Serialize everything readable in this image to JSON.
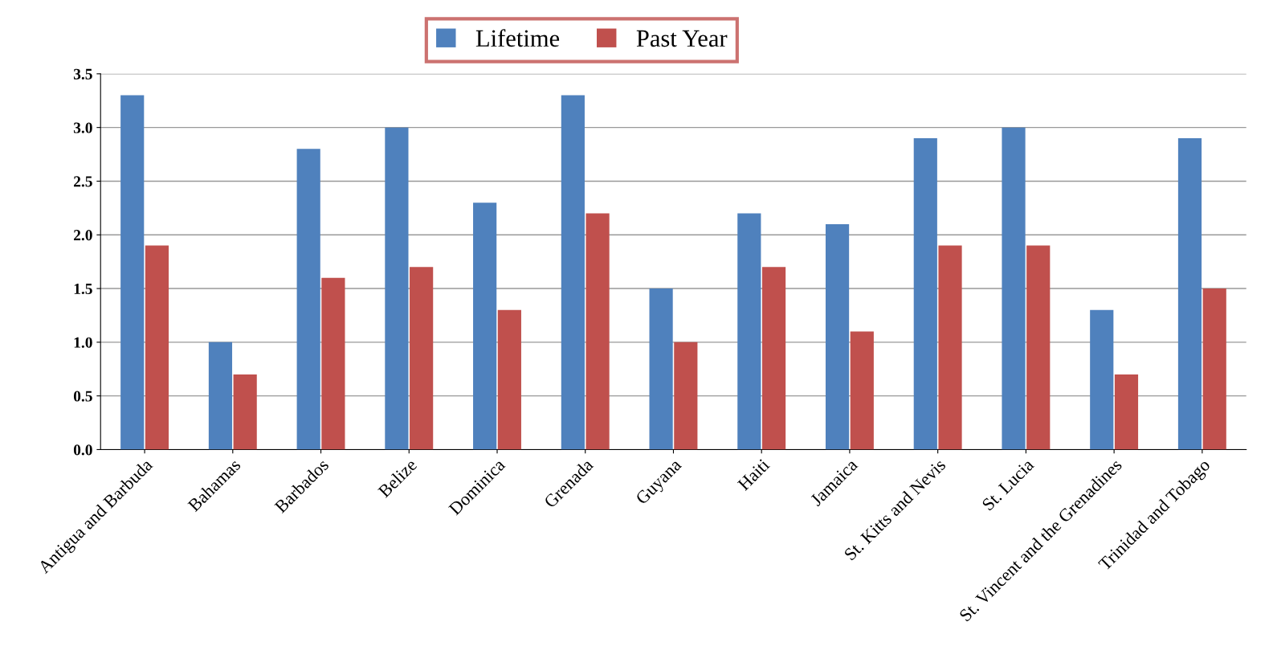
{
  "chart_data": {
    "type": "bar",
    "categories": [
      "Antigua and Barbuda",
      "Bahamas",
      "Barbados",
      "Belize",
      "Dominica",
      "Grenada",
      "Guyana",
      "Haiti",
      "Jamaica",
      "St. Kitts and Nevis",
      "St. Lucia",
      "St. Vincent and the Grenadines",
      "Trinidad and Tobago"
    ],
    "series": [
      {
        "name": "Lifetime",
        "color": "#4f81bd",
        "values": [
          3.3,
          1.0,
          2.8,
          3.0,
          2.3,
          3.3,
          1.5,
          2.2,
          2.1,
          2.9,
          3.0,
          1.3,
          2.9
        ]
      },
      {
        "name": "Past Year",
        "color": "#c0504d",
        "values": [
          1.9,
          0.7,
          1.6,
          1.7,
          1.3,
          2.2,
          1.0,
          1.7,
          1.1,
          1.9,
          1.9,
          0.7,
          1.5
        ]
      }
    ],
    "ylim": [
      0,
      3.5
    ],
    "yticks": [
      {
        "value": 0,
        "label": "0.0"
      },
      {
        "value": 0.5,
        "label": "0.5"
      },
      {
        "value": 1,
        "label": "1.0"
      },
      {
        "value": 1.5,
        "label": "1.5"
      },
      {
        "value": 2,
        "label": "2.0"
      },
      {
        "value": 2.5,
        "label": "2.5"
      },
      {
        "value": 3,
        "label": "3.0"
      },
      {
        "value": 3.5,
        "label": "3.5"
      }
    ],
    "grid": "y",
    "legend": "top"
  }
}
